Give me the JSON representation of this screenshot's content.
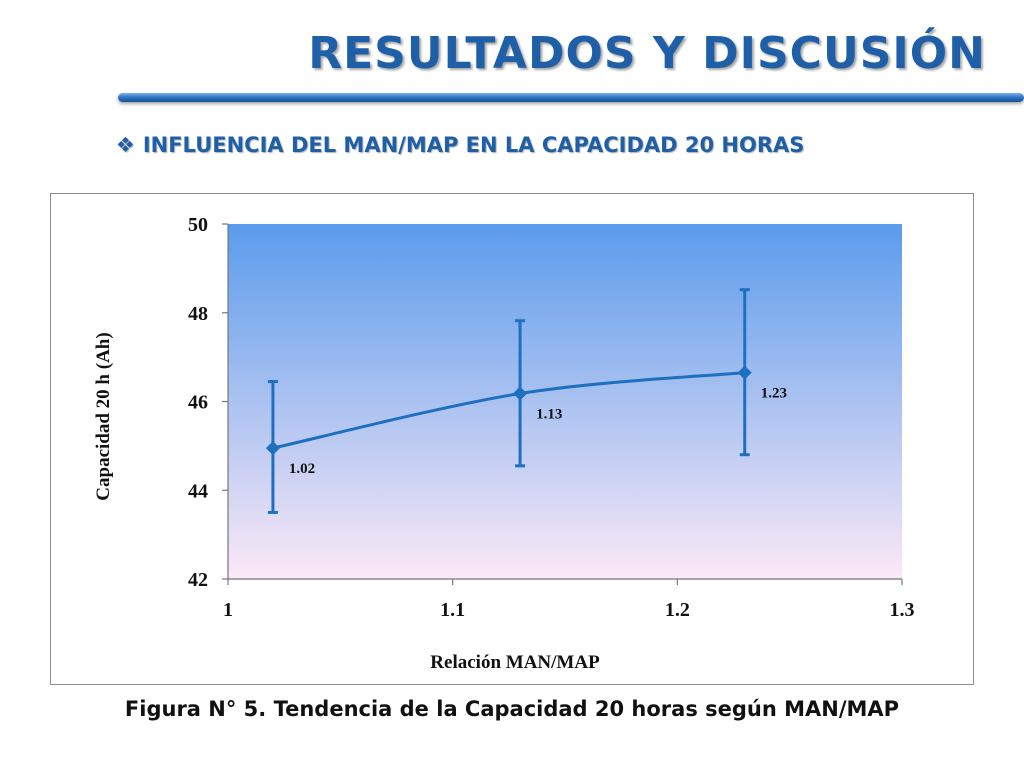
{
  "slide": {
    "title": "RESULTADOS Y DISCUSIÓN",
    "subtitle_bullet": "❖",
    "subtitle": "INFLUENCIA DEL MAN/MAP EN LA CAPACIDAD 20 HORAS",
    "caption": "Figura N° 5. Tendencia de la Capacidad 20 horas según MAN/MAP"
  },
  "colors": {
    "title": "#1f5fa8",
    "series": "#1f6fc0",
    "plot_top": "#5a9bec",
    "plot_bottom": "#fbe9f6"
  },
  "chart_data": {
    "type": "scatter",
    "title": "",
    "xlabel": "Relación MAN/MAP",
    "ylabel": "Capacidad  20 h (Ah)",
    "xlim": [
      1,
      1.3
    ],
    "ylim": [
      42,
      50
    ],
    "xticks": [
      1,
      1.1,
      1.2,
      1.3
    ],
    "xtick_labels": [
      "1",
      "1.1",
      "1.2",
      "1.3"
    ],
    "yticks": [
      42,
      44,
      46,
      48,
      50
    ],
    "ytick_labels": [
      "42",
      "44",
      "46",
      "48",
      "50"
    ],
    "grid": false,
    "legend": "none",
    "series": [
      {
        "marker": "diamond",
        "line": "smooth",
        "x": [
          1.02,
          1.13,
          1.23
        ],
        "y": [
          44.95,
          46.18,
          46.65
        ],
        "err_low": [
          43.5,
          44.55,
          44.8
        ],
        "err_high": [
          46.45,
          47.82,
          48.52
        ],
        "point_labels": [
          "1.02",
          "1.13",
          "1.23"
        ]
      }
    ]
  }
}
